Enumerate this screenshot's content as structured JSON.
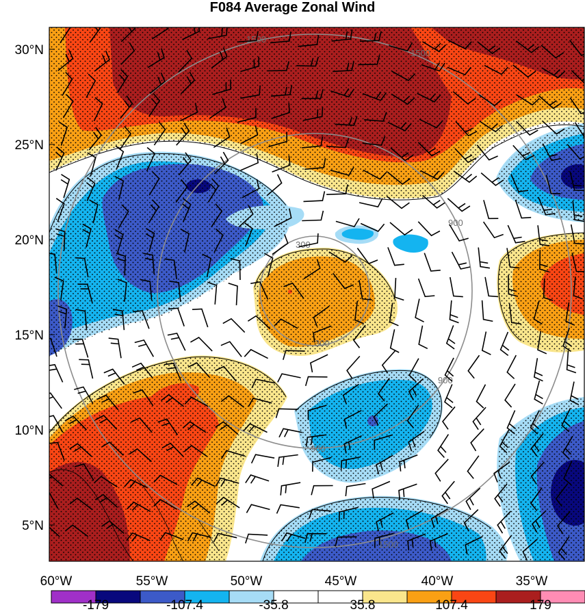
{
  "title": "F084 Average Zonal Wind",
  "lat_labels": [
    "30°N",
    "25°N",
    "20°N",
    "15°N",
    "10°N",
    "5°N"
  ],
  "lon_labels": [
    "60°W",
    "55°W",
    "50°W",
    "45°W",
    "40°W",
    "35°W"
  ],
  "range_ring_labels": [
    "300",
    "900",
    "1500"
  ],
  "colorbar": {
    "colors": [
      "#a030c8",
      "#08087d",
      "#3c5ac8",
      "#14b4f0",
      "#a6dcf6",
      "#ffffff",
      "#ffffff",
      "#fae68c",
      "#faa014",
      "#fa4614",
      "#aa1e1e",
      "#ff8cb4"
    ],
    "labels": [
      "-179",
      "-107.4",
      "-35.8",
      "35.8",
      "107.4",
      "179"
    ]
  },
  "color_scale": {
    "blue_strong": "#08087d",
    "blue_dark": "#3c5ac8",
    "blue_mid": "#14b4f0",
    "blue_light": "#a6dcf6",
    "yellow": "#fae68c",
    "orange": "#faa014",
    "red_orange": "#fa4614",
    "dark_red": "#aa1e1e"
  }
}
